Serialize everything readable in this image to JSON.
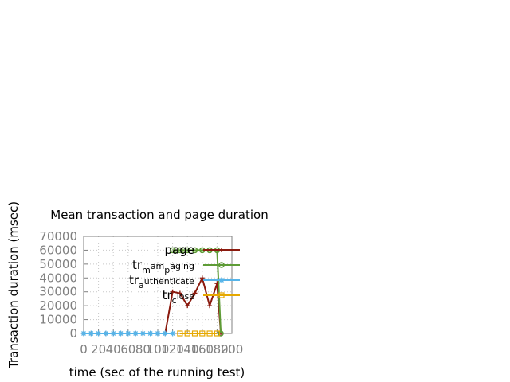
{
  "chart_data": {
    "type": "line",
    "title": "Mean transaction and page duration",
    "xlabel": "time (sec of the running test)",
    "ylabel": "Transaction duration (msec)",
    "xlim": [
      0,
      200
    ],
    "ylim": [
      0,
      70000
    ],
    "x_ticks": [
      "0",
      "20",
      "40",
      "60",
      "80",
      "100",
      "120",
      "140",
      "160",
      "180",
      "200"
    ],
    "y_ticks": [
      "0",
      "10000",
      "20000",
      "30000",
      "40000",
      "50000",
      "60000",
      "70000"
    ],
    "grid": true,
    "legend_position": "top-right",
    "series": [
      {
        "name": "page",
        "color": "#8b1a0e",
        "marker": "plus",
        "x": [
          0,
          10,
          20,
          30,
          40,
          50,
          60,
          70,
          80,
          90,
          100,
          110,
          120,
          130,
          140,
          150,
          160,
          170,
          180,
          185
        ],
        "y": [
          0,
          0,
          0,
          0,
          0,
          0,
          0,
          0,
          0,
          0,
          0,
          0,
          30000,
          29000,
          20000,
          29000,
          40000,
          20000,
          36000,
          0
        ]
      },
      {
        "name_base": "tr",
        "name_sub1": "m",
        "name_mid": "am",
        "name_sub2": "p",
        "name_end": "aging",
        "color": "#5e9c36",
        "marker": "circle",
        "x": [
          120,
          125,
          130,
          135,
          140,
          150,
          160,
          170,
          180,
          185
        ],
        "y": [
          60000,
          60000,
          60000,
          60000,
          60000,
          60000,
          60000,
          60000,
          60000,
          0
        ]
      },
      {
        "name_base": "tr",
        "name_sub": "a",
        "name_end": "uthenticate",
        "color": "#56b4e9",
        "marker": "star",
        "x": [
          0,
          10,
          20,
          30,
          40,
          50,
          60,
          70,
          80,
          90,
          100,
          110,
          120
        ],
        "y": [
          0,
          0,
          0,
          0,
          0,
          0,
          0,
          0,
          0,
          0,
          0,
          0,
          0
        ]
      },
      {
        "name_base": "tr",
        "name_sub": "c",
        "name_end": "lose",
        "color": "#e6a800",
        "marker": "square",
        "x": [
          130,
          140,
          150,
          160,
          170,
          180
        ],
        "y": [
          0,
          0,
          0,
          0,
          0,
          0
        ]
      }
    ]
  }
}
